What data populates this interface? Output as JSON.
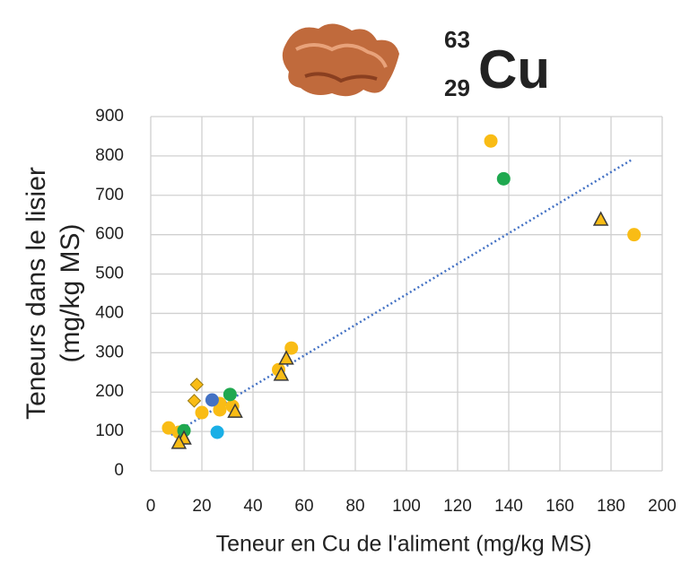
{
  "header": {
    "mass_number": "63",
    "atomic_number": "29",
    "symbol": "Cu"
  },
  "chart_data": {
    "type": "scatter",
    "xlabel": "Teneur en Cu de l'aliment (mg/kg MS)",
    "ylabel": [
      "Teneurs dans le lisier",
      "(mg/kg MS)"
    ],
    "xlim": [
      0,
      200
    ],
    "xticks": [
      0,
      20,
      40,
      60,
      80,
      100,
      120,
      140,
      160,
      180,
      200
    ],
    "ylim": [
      0,
      900
    ],
    "yticks": [
      0,
      100,
      200,
      300,
      400,
      500,
      600,
      700,
      800,
      900
    ],
    "grid": true,
    "series": [
      {
        "marker": "circle",
        "color": "#f9bc15",
        "x": [
          133,
          189,
          55,
          50,
          20,
          7,
          27,
          27,
          32,
          11
        ],
        "y": [
          838,
          600,
          312,
          257,
          148,
          109,
          155,
          171,
          164,
          98
        ]
      },
      {
        "marker": "circle",
        "color": "#1fa84f",
        "x": [
          138,
          31,
          13
        ],
        "y": [
          742,
          194,
          102
        ]
      },
      {
        "marker": "circle",
        "color": "#4472c4",
        "x": [
          24
        ],
        "y": [
          180
        ]
      },
      {
        "marker": "circle",
        "color": "#1aafe6",
        "x": [
          26
        ],
        "y": [
          98
        ]
      },
      {
        "marker": "diamond",
        "color": "#f9bc15",
        "x": [
          18,
          17
        ],
        "y": [
          219,
          178
        ]
      },
      {
        "marker": "triangle",
        "color": "#f9bc15",
        "x": [
          176,
          53,
          51,
          33,
          13,
          11
        ],
        "y": [
          638,
          285,
          244,
          150,
          82,
          71
        ]
      }
    ],
    "trendline": {
      "color": "#4472c4",
      "x": [
        8,
        188
      ],
      "y": [
        91,
        790
      ]
    }
  }
}
